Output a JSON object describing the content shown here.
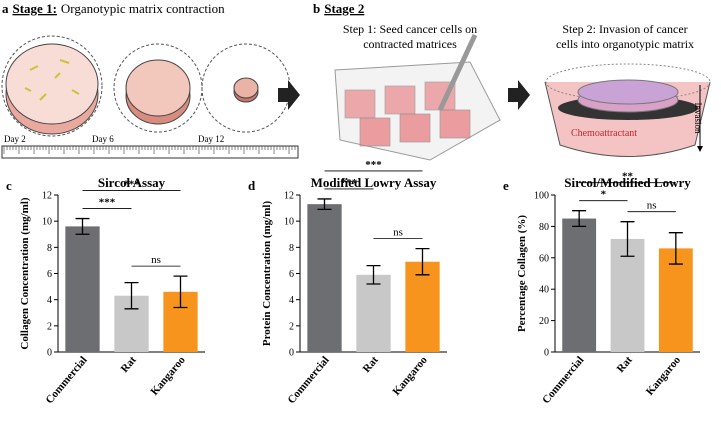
{
  "panel_a": {
    "letter": "a",
    "stage": "Stage 1:",
    "title": "Organotypic matrix contraction",
    "days": [
      "Day 2",
      "Day 6",
      "Day 12"
    ]
  },
  "panel_b": {
    "letter": "b",
    "stage": "Stage 2",
    "step1": [
      "Step 1: Seed cancer cells on",
      "contracted matrices"
    ],
    "step2": [
      "Step 2: Invasion of cancer",
      "cells into organotypic matrix"
    ],
    "invasion": "Invasion",
    "chemoattractant": "Chemoattractant"
  },
  "chart_data": [
    {
      "type": "bar",
      "panel": "c",
      "title": "Sircol Assay",
      "ylabel": "Collagen Concentration (mg/ml)",
      "categories": [
        "Commercial",
        "Rat",
        "Kangaroo"
      ],
      "values": [
        9.6,
        4.3,
        4.6
      ],
      "errors": [
        0.6,
        1.0,
        1.2
      ],
      "colors": [
        "#6d6e71",
        "#c8c8c8",
        "#f7941d"
      ],
      "ylim": [
        0,
        12
      ],
      "yticks": [
        0,
        2,
        4,
        6,
        8,
        10,
        12
      ],
      "annotations": [
        {
          "label": "***",
          "pair": [
            "Commercial",
            "Rat"
          ]
        },
        {
          "label": "***",
          "pair": [
            "Commercial",
            "Kangaroo"
          ]
        },
        {
          "label": "ns",
          "pair": [
            "Rat",
            "Kangaroo"
          ]
        }
      ]
    },
    {
      "type": "bar",
      "panel": "d",
      "title": "Modified Lowry Assay",
      "ylabel": "Protein Concentration (mg/ml)",
      "categories": [
        "Commercial",
        "Rat",
        "Kangaroo"
      ],
      "values": [
        11.3,
        5.9,
        6.9
      ],
      "errors": [
        0.4,
        0.7,
        1.0
      ],
      "colors": [
        "#6d6e71",
        "#c8c8c8",
        "#f7941d"
      ],
      "ylim": [
        0,
        12
      ],
      "yticks": [
        0,
        2,
        4,
        6,
        8,
        10,
        12
      ],
      "annotations": [
        {
          "label": "***",
          "pair": [
            "Commercial",
            "Rat"
          ]
        },
        {
          "label": "***",
          "pair": [
            "Commercial",
            "Kangaroo"
          ]
        },
        {
          "label": "ns",
          "pair": [
            "Rat",
            "Kangaroo"
          ]
        }
      ]
    },
    {
      "type": "bar",
      "panel": "e",
      "title": "Sircol/Modified Lowry",
      "ylabel": "Percentage Collagen (%)",
      "categories": [
        "Commercial",
        "Rat",
        "Kangaroo"
      ],
      "values": [
        85,
        72,
        66
      ],
      "errors": [
        5,
        11,
        10
      ],
      "colors": [
        "#6d6e71",
        "#c8c8c8",
        "#f7941d"
      ],
      "ylim": [
        0,
        100
      ],
      "yticks": [
        0,
        20,
        40,
        60,
        80,
        100
      ],
      "annotations": [
        {
          "label": "*",
          "pair": [
            "Commercial",
            "Rat"
          ]
        },
        {
          "label": "**",
          "pair": [
            "Commercial",
            "Kangaroo"
          ]
        },
        {
          "label": "ns",
          "pair": [
            "Rat",
            "Kangaroo"
          ]
        }
      ]
    }
  ]
}
